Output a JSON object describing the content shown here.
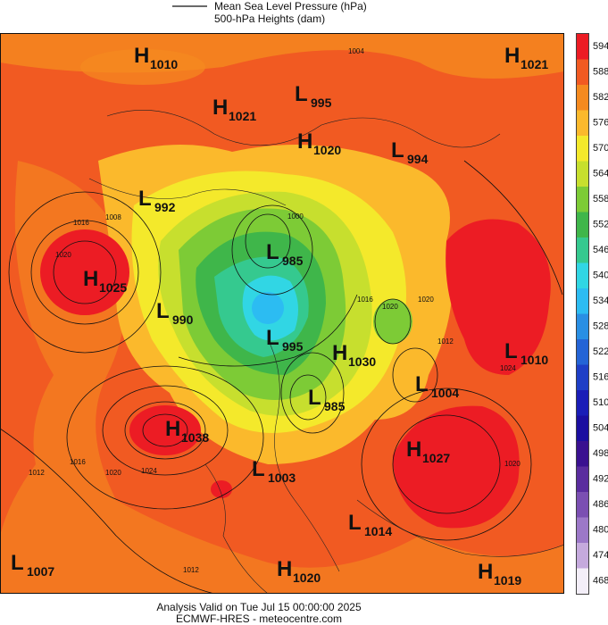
{
  "legend": {
    "line_label": "Mean Sea Level Pressure (hPa)",
    "fill_label": "500-hPa Heights (dam)"
  },
  "pressure_centers": [
    {
      "kind": "H",
      "value": "1010"
    },
    {
      "kind": "H",
      "value": "1021"
    },
    {
      "kind": "L",
      "value": "995"
    },
    {
      "kind": "H",
      "value": "1021"
    },
    {
      "kind": "H",
      "value": "1020"
    },
    {
      "kind": "L",
      "value": "994"
    },
    {
      "kind": "L",
      "value": "992"
    },
    {
      "kind": "L",
      "value": "985"
    },
    {
      "kind": "H",
      "value": "1025"
    },
    {
      "kind": "L",
      "value": "990"
    },
    {
      "kind": "L",
      "value": "995"
    },
    {
      "kind": "H",
      "value": "1030"
    },
    {
      "kind": "L",
      "value": "1010"
    },
    {
      "kind": "L",
      "value": "1004"
    },
    {
      "kind": "L",
      "value": "985"
    },
    {
      "kind": "H",
      "value": "1038"
    },
    {
      "kind": "H",
      "value": "1027"
    },
    {
      "kind": "L",
      "value": "1003"
    },
    {
      "kind": "L",
      "value": "1014"
    },
    {
      "kind": "L",
      "value": "1007"
    },
    {
      "kind": "H",
      "value": "1020"
    },
    {
      "kind": "H",
      "value": "1019"
    }
  ],
  "contour_labels": [
    "1004",
    "1016",
    "1008",
    "1020",
    "1000",
    "1020",
    "1016",
    "1020",
    "1012",
    "1024",
    "1016",
    "1012",
    "1020",
    "1024",
    "1012",
    "1020"
  ],
  "colorbar": [
    {
      "label": "594",
      "color": "#ec1c24"
    },
    {
      "label": "588",
      "color": "#f15a22"
    },
    {
      "label": "582",
      "color": "#f58a1f"
    },
    {
      "label": "576",
      "color": "#fbb92c"
    },
    {
      "label": "570",
      "color": "#f4e92b"
    },
    {
      "label": "564",
      "color": "#c7df2e"
    },
    {
      "label": "558",
      "color": "#7dcb36"
    },
    {
      "label": "552",
      "color": "#3fb64a"
    },
    {
      "label": "546",
      "color": "#35c98f"
    },
    {
      "label": "540",
      "color": "#31d6e4"
    },
    {
      "label": "534",
      "color": "#2cbcf2"
    },
    {
      "label": "528",
      "color": "#298fe4"
    },
    {
      "label": "522",
      "color": "#2464d6"
    },
    {
      "label": "516",
      "color": "#1e3ec6"
    },
    {
      "label": "510",
      "color": "#1a1db7"
    },
    {
      "label": "504",
      "color": "#1b0ea0"
    },
    {
      "label": "498",
      "color": "#3a1190"
    },
    {
      "label": "492",
      "color": "#5a2c9e"
    },
    {
      "label": "486",
      "color": "#7b4fb2"
    },
    {
      "label": "480",
      "color": "#9c78c8"
    },
    {
      "label": "474",
      "color": "#c5aadd"
    },
    {
      "label": "468",
      "color": "#f3eef8"
    }
  ],
  "footer": {
    "valid": "Analysis Valid on Tue Jul 15 00:00:00 2025",
    "source": "ECMWF-HRES - meteocentre.com"
  }
}
